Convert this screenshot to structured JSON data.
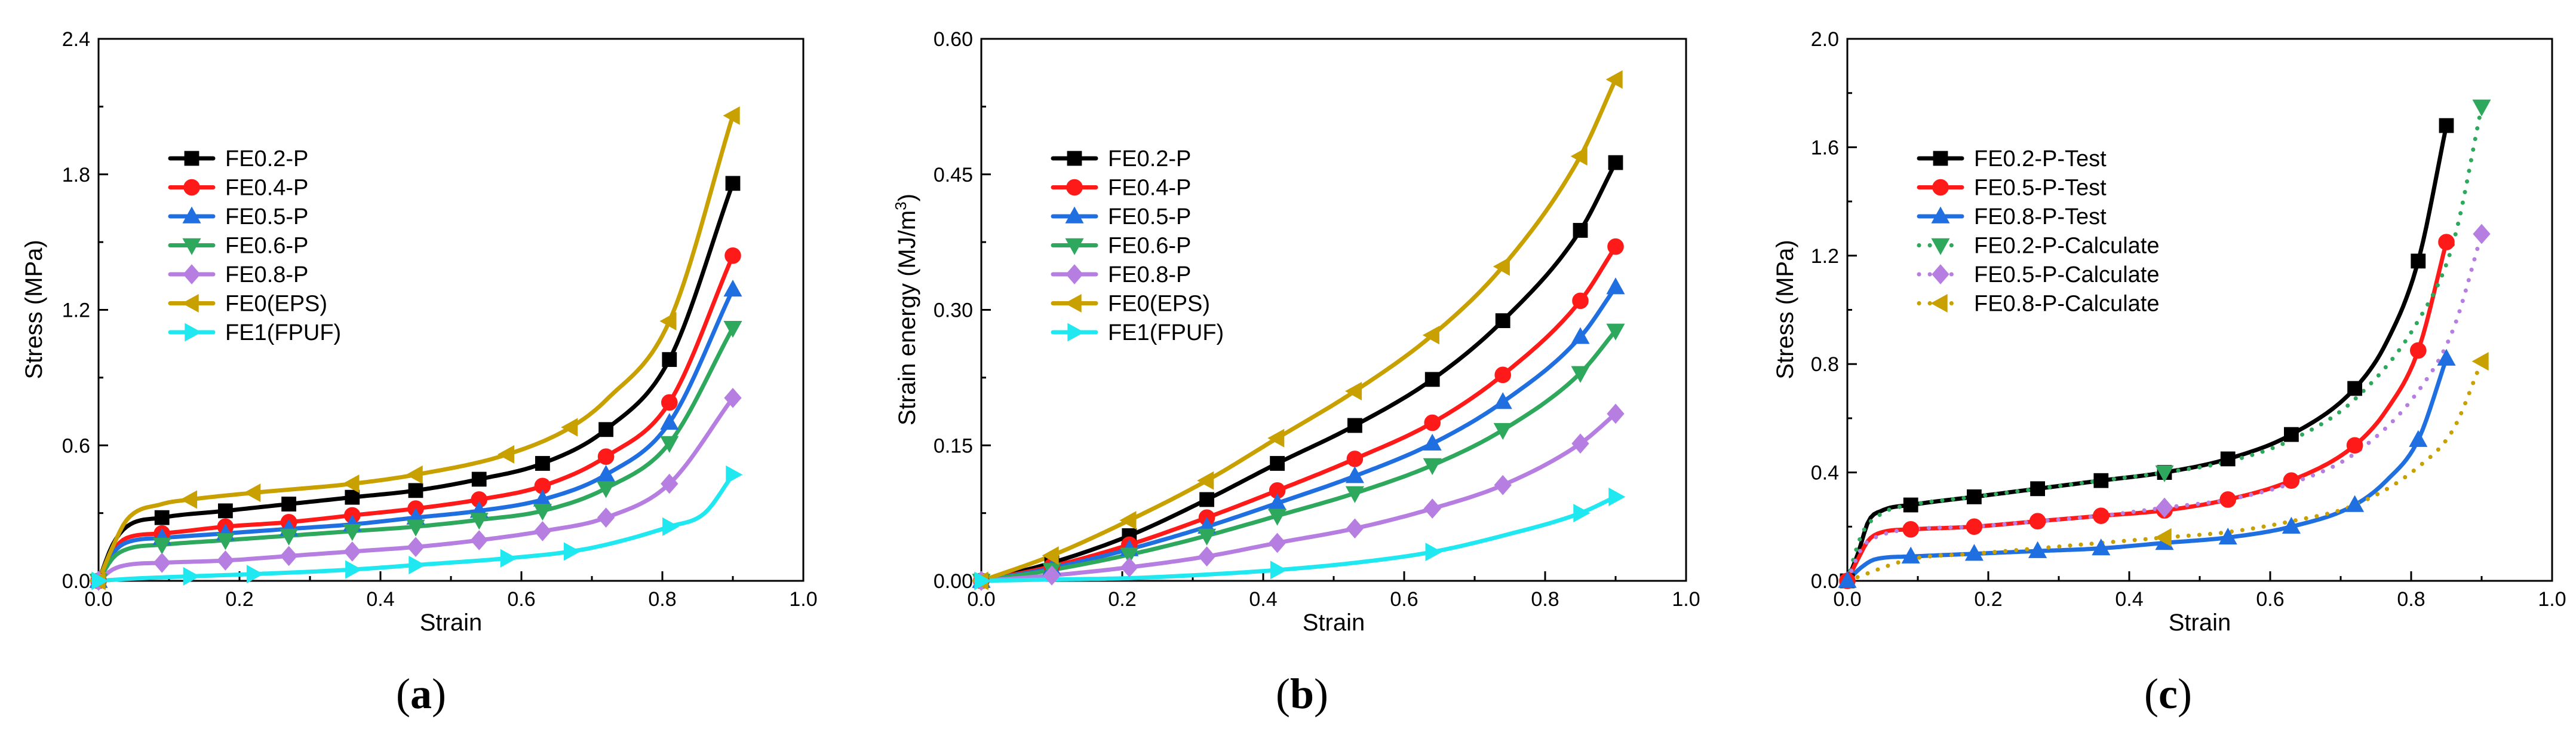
{
  "chart_data": [
    {
      "type": "line",
      "panel": "(a)",
      "panel_prefix": "(",
      "panel_letter": "a",
      "panel_suffix": ")",
      "xlabel": "Strain",
      "ylabel": "Stress (MPa)",
      "xlim": [
        0,
        1.0
      ],
      "ylim": [
        0,
        2.4
      ],
      "xticks": [
        0.0,
        0.2,
        0.4,
        0.6,
        0.8,
        1.0
      ],
      "xtick_labels": [
        "0.0",
        "0.2",
        "0.4",
        "0.6",
        "0.8",
        "1.0"
      ],
      "yticks": [
        0.0,
        0.6,
        1.2,
        1.8,
        2.4
      ],
      "ytick_labels": [
        "0.0",
        "0.6",
        "1.2",
        "1.8",
        "2.4"
      ],
      "legend_position": "upper-left",
      "series": [
        {
          "name": "FE0.2-P",
          "color": "#000000",
          "marker": "square",
          "dotted": false,
          "x": [
            0,
            0.02,
            0.04,
            0.09,
            0.18,
            0.27,
            0.36,
            0.45,
            0.54,
            0.63,
            0.72,
            0.81,
            0.9
          ],
          "y": [
            0,
            0.16,
            0.24,
            0.28,
            0.31,
            0.34,
            0.37,
            0.4,
            0.45,
            0.52,
            0.67,
            0.98,
            1.76
          ],
          "mx": [
            0,
            0.09,
            0.18,
            0.27,
            0.36,
            0.45,
            0.54,
            0.63,
            0.72,
            0.81,
            0.9
          ]
        },
        {
          "name": "FE0.4-P",
          "color": "#ff1a1a",
          "marker": "circle",
          "dotted": false,
          "x": [
            0,
            0.02,
            0.04,
            0.09,
            0.18,
            0.27,
            0.36,
            0.45,
            0.54,
            0.63,
            0.72,
            0.81,
            0.9
          ],
          "y": [
            0,
            0.13,
            0.19,
            0.21,
            0.24,
            0.26,
            0.29,
            0.32,
            0.36,
            0.42,
            0.55,
            0.79,
            1.44
          ],
          "mx": [
            0,
            0.09,
            0.18,
            0.27,
            0.36,
            0.45,
            0.54,
            0.63,
            0.72,
            0.81,
            0.9
          ]
        },
        {
          "name": "FE0.5-P",
          "color": "#1f6fe0",
          "marker": "triangle-up",
          "dotted": false,
          "x": [
            0,
            0.02,
            0.04,
            0.09,
            0.18,
            0.27,
            0.36,
            0.45,
            0.54,
            0.63,
            0.72,
            0.81,
            0.9
          ],
          "y": [
            0,
            0.12,
            0.17,
            0.19,
            0.21,
            0.23,
            0.25,
            0.28,
            0.31,
            0.36,
            0.47,
            0.7,
            1.29
          ],
          "mx": [
            0,
            0.09,
            0.18,
            0.27,
            0.36,
            0.45,
            0.54,
            0.63,
            0.72,
            0.81,
            0.9
          ]
        },
        {
          "name": "FE0.6-P",
          "color": "#2ea85c",
          "marker": "triangle-down",
          "dotted": false,
          "x": [
            0,
            0.02,
            0.04,
            0.09,
            0.18,
            0.27,
            0.36,
            0.45,
            0.54,
            0.63,
            0.72,
            0.81,
            0.9
          ],
          "y": [
            0,
            0.1,
            0.14,
            0.16,
            0.18,
            0.2,
            0.22,
            0.24,
            0.27,
            0.31,
            0.41,
            0.61,
            1.12
          ],
          "mx": [
            0,
            0.09,
            0.18,
            0.27,
            0.36,
            0.45,
            0.54,
            0.63,
            0.72,
            0.81,
            0.9
          ]
        },
        {
          "name": "FE0.8-P",
          "color": "#b57ee0",
          "marker": "diamond",
          "dotted": false,
          "x": [
            0,
            0.02,
            0.04,
            0.09,
            0.18,
            0.27,
            0.36,
            0.45,
            0.54,
            0.63,
            0.72,
            0.81,
            0.9
          ],
          "y": [
            0,
            0.05,
            0.07,
            0.08,
            0.09,
            0.11,
            0.13,
            0.15,
            0.18,
            0.22,
            0.28,
            0.43,
            0.81
          ],
          "mx": [
            0,
            0.09,
            0.18,
            0.27,
            0.36,
            0.45,
            0.54,
            0.63,
            0.72,
            0.81,
            0.9
          ]
        },
        {
          "name": "FE0(EPS)",
          "color": "#c8a000",
          "marker": "triangle-left",
          "dotted": false,
          "x": [
            0,
            0.02,
            0.04,
            0.09,
            0.13,
            0.22,
            0.36,
            0.45,
            0.58,
            0.67,
            0.72,
            0.81,
            0.9
          ],
          "y": [
            0,
            0.15,
            0.27,
            0.34,
            0.36,
            0.39,
            0.43,
            0.47,
            0.56,
            0.68,
            0.8,
            1.15,
            2.06
          ],
          "mx": [
            0,
            0.13,
            0.22,
            0.36,
            0.45,
            0.58,
            0.67,
            0.81,
            0.9
          ]
        },
        {
          "name": "FE1(FPUF)",
          "color": "#20e8f0",
          "marker": "triangle-right",
          "dotted": false,
          "x": [
            0,
            0.05,
            0.13,
            0.22,
            0.36,
            0.45,
            0.58,
            0.67,
            0.72,
            0.81,
            0.86,
            0.9
          ],
          "y": [
            0,
            0.01,
            0.02,
            0.03,
            0.05,
            0.07,
            0.1,
            0.13,
            0.16,
            0.24,
            0.3,
            0.47
          ],
          "mx": [
            0,
            0.13,
            0.22,
            0.36,
            0.45,
            0.58,
            0.67,
            0.81,
            0.9
          ]
        }
      ]
    },
    {
      "type": "line",
      "panel": "(b)",
      "panel_prefix": "(",
      "panel_letter": "b",
      "panel_suffix": ")",
      "xlabel": "Strain",
      "ylabel": "Strain energy (MJ/m",
      "ylabel_sup": "3",
      "ylabel_suffix": ")",
      "xlim": [
        0,
        1.0
      ],
      "ylim": [
        0,
        0.6
      ],
      "xticks": [
        0.0,
        0.2,
        0.4,
        0.6,
        0.8,
        1.0
      ],
      "xtick_labels": [
        "0.0",
        "0.2",
        "0.4",
        "0.6",
        "0.8",
        "1.0"
      ],
      "yticks": [
        0.0,
        0.15,
        0.3,
        0.45,
        0.6
      ],
      "ytick_labels": [
        "0.00",
        "0.15",
        "0.30",
        "0.45",
        "0.60"
      ],
      "legend_position": "upper-left",
      "series": [
        {
          "name": "FE0.2-P",
          "color": "#000000",
          "marker": "square",
          "dotted": false,
          "x": [
            0,
            0.1,
            0.21,
            0.32,
            0.42,
            0.53,
            0.64,
            0.74,
            0.85,
            0.9
          ],
          "y": [
            0,
            0.02,
            0.05,
            0.09,
            0.13,
            0.172,
            0.223,
            0.288,
            0.388,
            0.463
          ],
          "mx": [
            0,
            0.1,
            0.21,
            0.32,
            0.42,
            0.53,
            0.64,
            0.74,
            0.85,
            0.9
          ]
        },
        {
          "name": "FE0.4-P",
          "color": "#ff1a1a",
          "marker": "circle",
          "dotted": false,
          "x": [
            0,
            0.1,
            0.21,
            0.32,
            0.42,
            0.53,
            0.64,
            0.74,
            0.85,
            0.9
          ],
          "y": [
            0,
            0.016,
            0.04,
            0.07,
            0.1,
            0.135,
            0.175,
            0.228,
            0.31,
            0.37
          ],
          "mx": [
            0,
            0.1,
            0.21,
            0.32,
            0.42,
            0.53,
            0.64,
            0.74,
            0.85,
            0.9
          ]
        },
        {
          "name": "FE0.5-P",
          "color": "#1f6fe0",
          "marker": "triangle-up",
          "dotted": false,
          "x": [
            0,
            0.1,
            0.21,
            0.32,
            0.42,
            0.53,
            0.64,
            0.74,
            0.85,
            0.9
          ],
          "y": [
            0,
            0.014,
            0.035,
            0.06,
            0.086,
            0.116,
            0.152,
            0.198,
            0.27,
            0.325
          ],
          "mx": [
            0,
            0.1,
            0.21,
            0.32,
            0.42,
            0.53,
            0.64,
            0.74,
            0.85,
            0.9
          ]
        },
        {
          "name": "FE0.6-P",
          "color": "#2ea85c",
          "marker": "triangle-down",
          "dotted": false,
          "x": [
            0,
            0.1,
            0.21,
            0.32,
            0.42,
            0.53,
            0.64,
            0.74,
            0.85,
            0.9
          ],
          "y": [
            0,
            0.012,
            0.029,
            0.05,
            0.072,
            0.097,
            0.128,
            0.167,
            0.23,
            0.277
          ],
          "mx": [
            0,
            0.1,
            0.21,
            0.32,
            0.42,
            0.53,
            0.64,
            0.74,
            0.85,
            0.9
          ]
        },
        {
          "name": "FE0.8-P",
          "color": "#b57ee0",
          "marker": "diamond",
          "dotted": false,
          "x": [
            0,
            0.1,
            0.21,
            0.32,
            0.42,
            0.53,
            0.64,
            0.74,
            0.85,
            0.9
          ],
          "y": [
            0,
            0.006,
            0.015,
            0.027,
            0.042,
            0.058,
            0.08,
            0.106,
            0.152,
            0.185
          ],
          "mx": [
            0,
            0.1,
            0.21,
            0.32,
            0.42,
            0.53,
            0.64,
            0.74,
            0.85,
            0.9
          ]
        },
        {
          "name": "FE0(EPS)",
          "color": "#c8a000",
          "marker": "triangle-left",
          "dotted": false,
          "x": [
            0,
            0.1,
            0.21,
            0.32,
            0.42,
            0.53,
            0.64,
            0.74,
            0.85,
            0.9
          ],
          "y": [
            0,
            0.028,
            0.067,
            0.111,
            0.158,
            0.21,
            0.272,
            0.348,
            0.47,
            0.555
          ],
          "mx": [
            0,
            0.1,
            0.21,
            0.32,
            0.42,
            0.53,
            0.64,
            0.74,
            0.85,
            0.9
          ]
        },
        {
          "name": "FE1(FPUF)",
          "color": "#20e8f0",
          "marker": "triangle-right",
          "dotted": false,
          "x": [
            0,
            0.1,
            0.21,
            0.32,
            0.42,
            0.53,
            0.64,
            0.74,
            0.85,
            0.9
          ],
          "y": [
            0,
            0.0015,
            0.003,
            0.007,
            0.012,
            0.02,
            0.032,
            0.05,
            0.075,
            0.093
          ],
          "mx": [
            0,
            0.42,
            0.64,
            0.85,
            0.9
          ]
        }
      ]
    },
    {
      "type": "line",
      "panel": "(c)",
      "panel_prefix": "(",
      "panel_letter": "c",
      "panel_suffix": ")",
      "xlabel": "Strain",
      "ylabel": "Stress (MPa)",
      "xlim": [
        0,
        1.0
      ],
      "ylim": [
        0,
        2.0
      ],
      "xticks": [
        0.0,
        0.2,
        0.4,
        0.6,
        0.8,
        1.0
      ],
      "xtick_labels": [
        "0.0",
        "0.2",
        "0.4",
        "0.6",
        "0.8",
        "1.0"
      ],
      "yticks": [
        0.0,
        0.4,
        0.8,
        1.2,
        1.6,
        2.0
      ],
      "ytick_labels": [
        "0.0",
        "0.4",
        "0.8",
        "1.2",
        "1.6",
        "2.0"
      ],
      "legend_position": "upper-left",
      "series": [
        {
          "name": "FE0.2-P-Test",
          "color": "#000000",
          "marker": "square",
          "dotted": false,
          "x": [
            0,
            0.015,
            0.03,
            0.05,
            0.09,
            0.18,
            0.27,
            0.36,
            0.45,
            0.54,
            0.63,
            0.72,
            0.765,
            0.81,
            0.85
          ],
          "y": [
            0,
            0.1,
            0.22,
            0.26,
            0.28,
            0.31,
            0.34,
            0.37,
            0.4,
            0.45,
            0.54,
            0.71,
            0.88,
            1.18,
            1.68
          ],
          "mx": [
            0,
            0.09,
            0.18,
            0.27,
            0.36,
            0.45,
            0.54,
            0.63,
            0.72,
            0.81,
            0.85
          ]
        },
        {
          "name": "FE0.5-P-Test",
          "color": "#ff1a1a",
          "marker": "circle",
          "dotted": false,
          "x": [
            0,
            0.015,
            0.03,
            0.05,
            0.09,
            0.18,
            0.27,
            0.36,
            0.45,
            0.54,
            0.63,
            0.72,
            0.765,
            0.81,
            0.85
          ],
          "y": [
            0,
            0.08,
            0.15,
            0.18,
            0.19,
            0.2,
            0.22,
            0.24,
            0.26,
            0.3,
            0.37,
            0.5,
            0.63,
            0.85,
            1.25
          ],
          "mx": [
            0,
            0.09,
            0.18,
            0.27,
            0.36,
            0.45,
            0.54,
            0.63,
            0.72,
            0.81,
            0.85
          ]
        },
        {
          "name": "FE0.8-P-Test",
          "color": "#1f6fe0",
          "marker": "triangle-up",
          "dotted": false,
          "x": [
            0,
            0.02,
            0.04,
            0.09,
            0.18,
            0.27,
            0.36,
            0.45,
            0.54,
            0.63,
            0.72,
            0.765,
            0.81,
            0.85
          ],
          "y": [
            0,
            0.05,
            0.08,
            0.09,
            0.1,
            0.11,
            0.12,
            0.14,
            0.16,
            0.2,
            0.28,
            0.37,
            0.52,
            0.82
          ],
          "mx": [
            0,
            0.09,
            0.18,
            0.27,
            0.36,
            0.45,
            0.54,
            0.63,
            0.72,
            0.81,
            0.85
          ]
        },
        {
          "name": "FE0.2-P-Calculate",
          "color": "#2ea85c",
          "marker": "triangle-down",
          "dotted": true,
          "x": [
            0,
            0.02,
            0.05,
            0.09,
            0.18,
            0.27,
            0.36,
            0.45,
            0.54,
            0.63,
            0.72,
            0.81,
            0.86,
            0.9
          ],
          "y": [
            0,
            0.17,
            0.25,
            0.28,
            0.31,
            0.34,
            0.37,
            0.4,
            0.44,
            0.52,
            0.67,
            0.96,
            1.25,
            1.75
          ],
          "mx": [
            0.45,
            0.9
          ]
        },
        {
          "name": "FE0.5-P-Calculate",
          "color": "#b57ee0",
          "marker": "diamond",
          "dotted": true,
          "x": [
            0,
            0.02,
            0.05,
            0.09,
            0.18,
            0.27,
            0.36,
            0.45,
            0.54,
            0.63,
            0.72,
            0.81,
            0.86,
            0.9
          ],
          "y": [
            0,
            0.12,
            0.17,
            0.19,
            0.2,
            0.22,
            0.24,
            0.27,
            0.3,
            0.36,
            0.47,
            0.7,
            0.93,
            1.28
          ],
          "mx": [
            0.45,
            0.9
          ]
        },
        {
          "name": "FE0.8-P-Calculate",
          "color": "#c8a000",
          "marker": "triangle-left",
          "dotted": true,
          "x": [
            0,
            0.09,
            0.18,
            0.27,
            0.36,
            0.45,
            0.54,
            0.63,
            0.72,
            0.81,
            0.86,
            0.9
          ],
          "y": [
            0,
            0.08,
            0.1,
            0.12,
            0.14,
            0.16,
            0.18,
            0.22,
            0.28,
            0.42,
            0.56,
            0.81
          ],
          "mx": [
            0.45,
            0.9
          ]
        }
      ]
    }
  ]
}
